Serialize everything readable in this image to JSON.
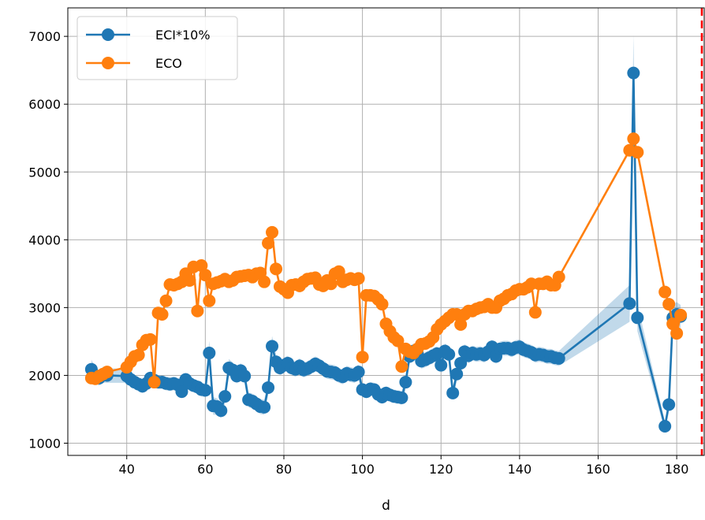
{
  "chart_data": {
    "type": "line",
    "xlabel": "d",
    "ylabel": "",
    "title": "",
    "xlim": [
      25,
      187
    ],
    "ylim": [
      820,
      7420
    ],
    "x_ticks": [
      40,
      60,
      80,
      100,
      120,
      140,
      160,
      180
    ],
    "x_tick_labels": [
      "40",
      "60",
      "80",
      "100",
      "120",
      "140",
      "160",
      "180"
    ],
    "y_ticks": [
      1000,
      2000,
      3000,
      4000,
      5000,
      6000,
      7000
    ],
    "y_tick_labels": [
      "1000",
      "2000",
      "3000",
      "4000",
      "5000",
      "6000",
      "7000"
    ],
    "grid": true,
    "legend_position": "top-left",
    "vline": {
      "x": 187,
      "color": "#ff0000",
      "style": "dashed"
    },
    "series": [
      {
        "name": "ECI*10%",
        "color": "#1f77b4",
        "x": [
          31,
          32,
          33,
          34,
          35,
          40,
          41,
          42,
          43,
          44,
          45,
          46,
          47,
          48,
          49,
          50,
          51,
          52,
          53,
          54,
          55,
          56,
          57,
          58,
          59,
          60,
          61,
          62,
          63,
          64,
          65,
          66,
          67,
          68,
          69,
          70,
          71,
          72,
          73,
          74,
          75,
          76,
          77,
          78,
          79,
          80,
          81,
          82,
          83,
          84,
          85,
          86,
          87,
          88,
          89,
          90,
          91,
          92,
          93,
          94,
          95,
          96,
          97,
          98,
          99,
          100,
          101,
          102,
          103,
          104,
          105,
          106,
          107,
          108,
          109,
          110,
          111,
          112,
          113,
          114,
          115,
          116,
          117,
          118,
          119,
          120,
          121,
          122,
          123,
          124,
          125,
          126,
          127,
          128,
          129,
          130,
          131,
          132,
          133,
          134,
          135,
          136,
          137,
          138,
          139,
          140,
          141,
          142,
          143,
          144,
          145,
          146,
          147,
          148,
          149,
          150,
          168,
          169,
          170,
          177,
          178,
          179,
          180,
          181
        ],
        "values": [
          2090,
          2000,
          1960,
          2010,
          2000,
          1990,
          1940,
          1900,
          1870,
          1840,
          1880,
          1960,
          1930,
          1900,
          1900,
          1880,
          1870,
          1880,
          1860,
          1760,
          1940,
          1880,
          1850,
          1830,
          1790,
          1780,
          2330,
          1550,
          1540,
          1480,
          1690,
          2110,
          2080,
          1990,
          2070,
          1990,
          1640,
          1620,
          1580,
          1540,
          1530,
          1820,
          2430,
          2200,
          2110,
          2150,
          2180,
          2110,
          2090,
          2140,
          2080,
          2100,
          2130,
          2170,
          2140,
          2100,
          2060,
          2050,
          2040,
          2000,
          1980,
          2030,
          2010,
          2000,
          2050,
          1790,
          1760,
          1800,
          1790,
          1720,
          1680,
          1740,
          1710,
          1690,
          1680,
          1670,
          1900,
          2280,
          2360,
          2320,
          2210,
          2230,
          2260,
          2290,
          2320,
          2150,
          2360,
          2310,
          1740,
          2020,
          2180,
          2350,
          2290,
          2330,
          2310,
          2320,
          2300,
          2350,
          2420,
          2280,
          2390,
          2400,
          2400,
          2380,
          2410,
          2420,
          2380,
          2360,
          2340,
          2300,
          2310,
          2300,
          2280,
          2280,
          2260,
          2250,
          3060,
          6460,
          2850,
          1250,
          1570,
          2850,
          2900,
          2870
        ],
        "band_lower": [
          1950,
          1880,
          1850,
          1890,
          1890,
          1890,
          1840,
          1800,
          1770,
          1740,
          1780,
          1860,
          1830,
          1800,
          1800,
          1780,
          1770,
          1780,
          1760,
          1660,
          1840,
          1780,
          1750,
          1730,
          1690,
          1680,
          2150,
          1420,
          1420,
          1370,
          1580,
          1980,
          1970,
          1880,
          1960,
          1880,
          1530,
          1510,
          1470,
          1430,
          1420,
          1710,
          2280,
          2090,
          2000,
          2040,
          2070,
          2000,
          1980,
          2030,
          1970,
          1990,
          2020,
          2060,
          2030,
          1990,
          1950,
          1940,
          1930,
          1890,
          1870,
          1920,
          1900,
          1890,
          1940,
          1690,
          1660,
          1700,
          1690,
          1620,
          1580,
          1640,
          1610,
          1590,
          1580,
          1570,
          1790,
          2170,
          2250,
          2210,
          2100,
          2120,
          2150,
          2180,
          2210,
          2040,
          2250,
          2200,
          1640,
          1910,
          2070,
          2240,
          2180,
          2220,
          2200,
          2210,
          2190,
          2240,
          2310,
          2170,
          2280,
          2290,
          2290,
          2270,
          2300,
          2310,
          2270,
          2250,
          2230,
          2190,
          2200,
          2190,
          2170,
          2170,
          2150,
          2140,
          2790,
          5900,
          2650,
          1180,
          1450,
          2650,
          2720,
          2700
        ],
        "band_upper": [
          2230,
          2120,
          2070,
          2130,
          2110,
          2090,
          2040,
          2000,
          1970,
          1940,
          1980,
          2060,
          2030,
          2000,
          2000,
          1980,
          1970,
          1980,
          1960,
          1860,
          2040,
          1980,
          1950,
          1930,
          1890,
          1880,
          2510,
          1680,
          1660,
          1590,
          1800,
          2240,
          2190,
          2100,
          2180,
          2100,
          1750,
          1730,
          1690,
          1650,
          1640,
          1930,
          2580,
          2310,
          2220,
          2260,
          2290,
          2220,
          2200,
          2250,
          2190,
          2210,
          2240,
          2280,
          2250,
          2210,
          2170,
          2160,
          2150,
          2110,
          2090,
          2140,
          2120,
          2110,
          2160,
          1890,
          1860,
          1900,
          1890,
          1820,
          1780,
          1840,
          1810,
          1790,
          1780,
          1770,
          2010,
          2390,
          2470,
          2430,
          2320,
          2340,
          2370,
          2400,
          2430,
          2260,
          2470,
          2420,
          1840,
          2130,
          2290,
          2460,
          2400,
          2440,
          2420,
          2430,
          2410,
          2460,
          2530,
          2390,
          2500,
          2510,
          2510,
          2490,
          2520,
          2530,
          2490,
          2470,
          2450,
          2410,
          2420,
          2410,
          2390,
          2390,
          2370,
          2360,
          3330,
          7020,
          3050,
          1320,
          1690,
          3050,
          3080,
          3040
        ]
      },
      {
        "name": "ECO",
        "color": "#ff7f0e",
        "x": [
          31,
          32,
          33,
          34,
          35,
          40,
          41,
          42,
          43,
          44,
          45,
          46,
          47,
          48,
          49,
          50,
          51,
          52,
          53,
          54,
          55,
          56,
          57,
          58,
          59,
          60,
          61,
          62,
          63,
          64,
          65,
          66,
          67,
          68,
          69,
          70,
          71,
          72,
          73,
          74,
          75,
          76,
          77,
          78,
          79,
          80,
          81,
          82,
          83,
          84,
          85,
          86,
          87,
          88,
          89,
          90,
          91,
          92,
          93,
          94,
          95,
          96,
          97,
          98,
          99,
          100,
          101,
          102,
          103,
          104,
          105,
          106,
          107,
          108,
          109,
          110,
          111,
          112,
          113,
          114,
          115,
          116,
          117,
          118,
          119,
          120,
          121,
          122,
          123,
          124,
          125,
          126,
          127,
          128,
          129,
          130,
          131,
          132,
          133,
          134,
          135,
          136,
          137,
          138,
          139,
          140,
          141,
          142,
          143,
          144,
          145,
          146,
          147,
          148,
          149,
          150,
          168,
          169,
          170,
          177,
          178,
          179,
          180,
          181
        ],
        "values": [
          1960,
          1950,
          1990,
          2020,
          2050,
          2120,
          2200,
          2280,
          2300,
          2450,
          2520,
          2530,
          1900,
          2920,
          2900,
          3100,
          3340,
          3330,
          3350,
          3380,
          3500,
          3400,
          3600,
          2950,
          3620,
          3480,
          3100,
          3350,
          3370,
          3390,
          3420,
          3380,
          3400,
          3450,
          3460,
          3470,
          3480,
          3450,
          3500,
          3510,
          3380,
          3950,
          4110,
          3570,
          3310,
          3270,
          3220,
          3330,
          3340,
          3320,
          3380,
          3420,
          3430,
          3440,
          3340,
          3320,
          3400,
          3350,
          3500,
          3530,
          3380,
          3410,
          3430,
          3410,
          3430,
          2270,
          3180,
          3180,
          3170,
          3120,
          3050,
          2760,
          2650,
          2560,
          2510,
          2130,
          2390,
          2350,
          2330,
          2390,
          2460,
          2470,
          2500,
          2560,
          2680,
          2750,
          2800,
          2850,
          2900,
          2900,
          2750,
          2900,
          2950,
          2950,
          2980,
          3000,
          3010,
          3050,
          3000,
          3000,
          3100,
          3130,
          3180,
          3200,
          3250,
          3270,
          3270,
          3300,
          3350,
          2930,
          3350,
          3350,
          3380,
          3330,
          3330,
          3450,
          5320,
          5490,
          5290,
          3230,
          3050,
          2760,
          2620,
          2890
        ]
      }
    ]
  }
}
